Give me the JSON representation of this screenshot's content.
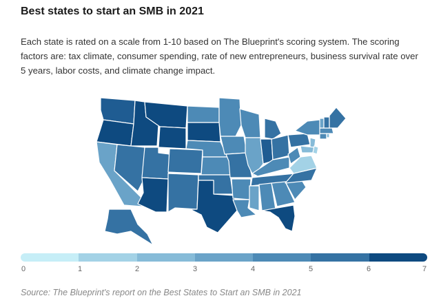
{
  "header": {
    "title": "Best states to start an SMB in 2021",
    "description": "Each state is rated on a scale from 1-10 based on The Blueprint's scoring system. The scoring factors are: tax climate, consumer spending, rate of new entrepreneurs, business survival rate over 5 years, labor costs, and climate change impact."
  },
  "legend": {
    "ticks": [
      "0",
      "1",
      "2",
      "3",
      "4",
      "5",
      "6",
      "7"
    ],
    "colors": [
      "#c6eef7",
      "#a3d2e6",
      "#86bbd8",
      "#6aa3c8",
      "#4d8ab6",
      "#3572a3",
      "#1f5c92",
      "#0e4a80"
    ]
  },
  "footer": {
    "source": "Source: The Blueprint's report on the Best States to Start an SMB in 2021"
  },
  "map_colors": {
    "bg": "#ffffff",
    "border": "#ffffff"
  }
}
